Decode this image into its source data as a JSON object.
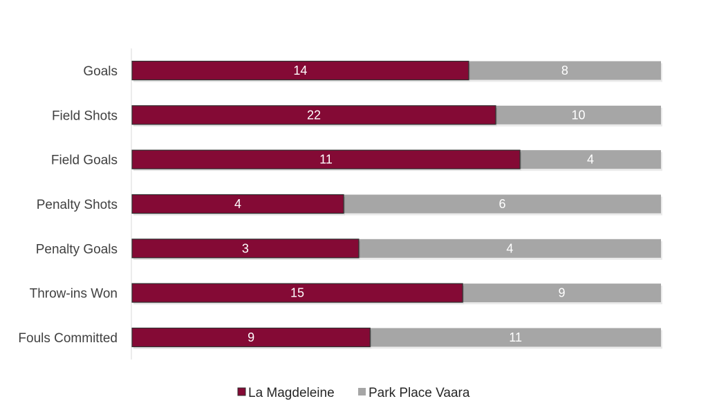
{
  "chart_data": {
    "type": "bar",
    "orientation": "horizontal",
    "stacking": "percent",
    "categories": [
      "Goals",
      "Field Shots",
      "Field Goals",
      "Penalty Shots",
      "Penalty Goals",
      "Throw-ins Won",
      "Fouls Committed"
    ],
    "series": [
      {
        "name": "La Magdeleine",
        "color": "#840a35",
        "values": [
          14,
          22,
          11,
          4,
          3,
          15,
          9
        ]
      },
      {
        "name": "Park Place Vaara",
        "color": "#a6a6a6",
        "values": [
          8,
          10,
          4,
          6,
          4,
          9,
          11
        ]
      }
    ],
    "data_labels": true,
    "grid": false,
    "legend_position": "bottom"
  }
}
